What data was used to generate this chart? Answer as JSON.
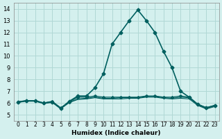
{
  "xlabel": "Humidex (Indice chaleur)",
  "xlim": [
    -0.5,
    23.5
  ],
  "ylim": [
    4.5,
    14.5
  ],
  "yticks": [
    5,
    6,
    7,
    8,
    9,
    10,
    11,
    12,
    13,
    14
  ],
  "xtick_labels": [
    "0",
    "1",
    "2",
    "3",
    "4",
    "5",
    "6",
    "7",
    "8",
    "9",
    "10",
    "11",
    "12",
    "13",
    "14",
    "15",
    "16",
    "17",
    "18",
    "19",
    "20",
    "21",
    "22",
    "23"
  ],
  "bg_color": "#d4f0ee",
  "grid_color": "#b0d8d5",
  "line_color": "#005f5f",
  "series": [
    {
      "x": [
        0,
        1,
        2,
        3,
        4,
        5,
        6,
        7,
        8,
        9,
        10,
        11,
        12,
        13,
        14,
        15,
        16,
        17,
        18,
        19,
        20,
        21,
        22,
        23
      ],
      "y": [
        6.1,
        6.2,
        6.2,
        6.0,
        6.1,
        5.55,
        6.15,
        6.6,
        6.6,
        7.3,
        8.5,
        11.0,
        12.0,
        13.0,
        13.9,
        13.0,
        12.0,
        10.4,
        9.0,
        7.0,
        6.5,
        5.9,
        5.6,
        5.8
      ],
      "marker": "D",
      "markersize": 2.5,
      "linewidth": 1.2
    },
    {
      "x": [
        0,
        1,
        2,
        3,
        4,
        5,
        6,
        7,
        8,
        9,
        10,
        11,
        12,
        13,
        14,
        15,
        16,
        17,
        18,
        19,
        20,
        21,
        22,
        23
      ],
      "y": [
        6.1,
        6.2,
        6.2,
        6.0,
        6.15,
        5.6,
        6.1,
        6.5,
        6.5,
        6.6,
        6.5,
        6.5,
        6.5,
        6.5,
        6.5,
        6.6,
        6.6,
        6.5,
        6.5,
        6.6,
        6.5,
        5.9,
        5.6,
        5.8
      ],
      "marker": "D",
      "markersize": 2.0,
      "linewidth": 0.9
    },
    {
      "x": [
        0,
        1,
        2,
        3,
        4,
        5,
        6,
        7,
        8,
        9,
        10,
        11,
        12,
        13,
        14,
        15,
        16,
        17,
        18,
        19,
        20,
        21,
        22,
        23
      ],
      "y": [
        6.05,
        6.2,
        6.2,
        6.0,
        6.1,
        5.55,
        6.05,
        6.35,
        6.4,
        6.5,
        6.4,
        6.4,
        6.45,
        6.45,
        6.45,
        6.55,
        6.55,
        6.45,
        6.4,
        6.5,
        6.45,
        5.85,
        5.55,
        5.75
      ],
      "marker": null,
      "markersize": 0,
      "linewidth": 0.9
    },
    {
      "x": [
        0,
        1,
        2,
        3,
        4,
        5,
        6,
        7,
        8,
        9,
        10,
        11,
        12,
        13,
        14,
        15,
        16,
        17,
        18,
        19,
        20,
        21,
        22,
        23
      ],
      "y": [
        6.05,
        6.15,
        6.15,
        5.95,
        6.05,
        5.5,
        6.05,
        6.3,
        6.35,
        6.45,
        6.35,
        6.35,
        6.35,
        6.4,
        6.4,
        6.5,
        6.5,
        6.4,
        6.35,
        6.4,
        6.35,
        5.8,
        5.5,
        5.7
      ],
      "marker": null,
      "markersize": 0,
      "linewidth": 0.8
    }
  ]
}
